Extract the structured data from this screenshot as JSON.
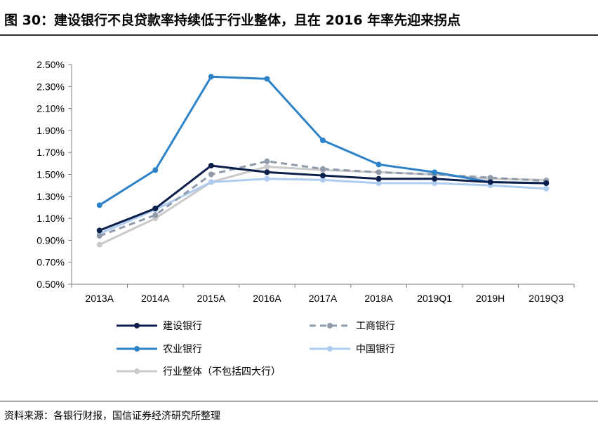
{
  "title": "图 30：建设银行不良贷款率持续低于行业整体，且在 2016 年率先迎来拐点",
  "source": "资料来源：各银行财报，国信证券经济研究所整理",
  "chart_data": {
    "type": "line",
    "categories": [
      "2013A",
      "2014A",
      "2015A",
      "2016A",
      "2017A",
      "2018A",
      "2019Q1",
      "2019H",
      "2019Q3"
    ],
    "ylim": [
      0.5,
      2.5
    ],
    "yticks": [
      "0.50%",
      "0.70%",
      "0.90%",
      "1.10%",
      "1.30%",
      "1.50%",
      "1.70%",
      "1.90%",
      "2.10%",
      "2.30%",
      "2.50%"
    ],
    "grid": false,
    "legend_position": "bottom",
    "series": [
      {
        "name": "建设银行",
        "color": "#0c1f4a",
        "dash": false,
        "values": [
          0.99,
          1.19,
          1.58,
          1.52,
          1.49,
          1.46,
          1.46,
          1.43,
          1.42
        ]
      },
      {
        "name": "工商银行",
        "color": "#8f9bab",
        "dash": true,
        "values": [
          0.94,
          1.13,
          1.5,
          1.62,
          1.55,
          1.52,
          1.5,
          1.47,
          1.44
        ]
      },
      {
        "name": "农业银行",
        "color": "#2e82c7",
        "dash": false,
        "values": [
          1.22,
          1.54,
          2.39,
          2.37,
          1.81,
          1.59,
          1.52,
          1.43,
          1.42
        ]
      },
      {
        "name": "中国银行",
        "color": "#aecbf0",
        "dash": false,
        "values": [
          0.96,
          1.18,
          1.43,
          1.46,
          1.45,
          1.42,
          1.42,
          1.4,
          1.37
        ]
      },
      {
        "name": "行业整体（不包括四大行）",
        "color": "#c9c9c9",
        "dash": false,
        "values": [
          0.86,
          1.1,
          1.43,
          1.57,
          1.54,
          1.52,
          1.5,
          1.46,
          1.45
        ]
      }
    ]
  }
}
